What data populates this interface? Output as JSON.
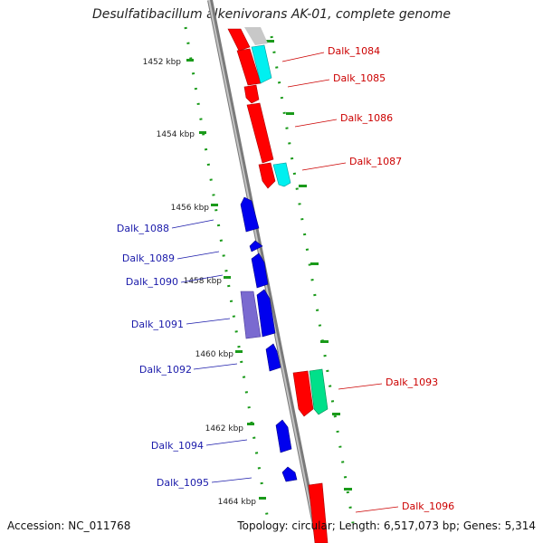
{
  "title": "Desulfatibacillum alkenivorans AK-01, complete genome",
  "footer": {
    "accession": "Accession: NC_011768",
    "summary": "Topology: circular; Length: 6,517,073 bp; Genes: 5,314"
  },
  "scale_labels": [
    "1452 kbp",
    "1454 kbp",
    "1456 kbp",
    "1458 kbp",
    "1460 kbp",
    "1462 kbp",
    "1464 kbp"
  ],
  "genes_right": [
    "Dalk_1084",
    "Dalk_1085",
    "Dalk_1086",
    "Dalk_1087",
    "Dalk_1093",
    "Dalk_1096"
  ],
  "genes_left": [
    "Dalk_1088",
    "Dalk_1089",
    "Dalk_1090",
    "Dalk_1091",
    "Dalk_1092",
    "Dalk_1094",
    "Dalk_1095"
  ],
  "colors": {
    "forward_strand": "#ff0000",
    "reverse_strand": "#0000ee",
    "forward_label": "#cc0000",
    "reverse_label": "#1a1aaa",
    "cyan_feature": "#00f0f0",
    "green_feature": "#00e08a",
    "purple_feature": "#7a6ad0",
    "gray_feature": "#c8c8c8",
    "backbone": "#909090",
    "tick": "#1a9a1a"
  }
}
